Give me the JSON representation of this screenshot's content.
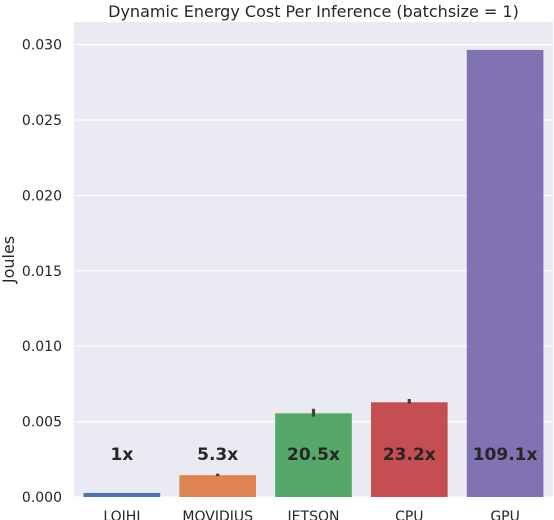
{
  "chart_data": {
    "type": "bar",
    "title": "Dynamic Energy Cost Per Inference (batchsize = 1)",
    "xlabel": "",
    "ylabel": "Joules",
    "categories": [
      "LOIHI",
      "MOVIDIUS",
      "JETSON",
      "CPU",
      "GPU"
    ],
    "values": [
      0.00027,
      0.00145,
      0.00555,
      0.00628,
      0.02965
    ],
    "error_bars": [
      {
        "low": 0.00027,
        "high": 0.00027
      },
      {
        "low": 0.00138,
        "high": 0.00155
      },
      {
        "low": 0.00533,
        "high": 0.00585
      },
      {
        "low": 0.00618,
        "high": 0.0065
      },
      {
        "low": 0.02965,
        "high": 0.02965
      }
    ],
    "annotations": [
      "1x",
      "5.3x",
      "20.5x",
      "23.2x",
      "109.1x"
    ],
    "colors": [
      "#4c72b0",
      "#dd8452",
      "#55a868",
      "#c44e52",
      "#8172b3"
    ],
    "ylim": [
      0,
      0.0315
    ],
    "yticks": [
      0.0,
      0.005,
      0.01,
      0.015,
      0.02,
      0.025,
      0.03
    ],
    "ytick_labels": [
      "0.000",
      "0.005",
      "0.010",
      "0.015",
      "0.020",
      "0.025",
      "0.030"
    ],
    "grid": true,
    "background": "#eaeaf2"
  }
}
